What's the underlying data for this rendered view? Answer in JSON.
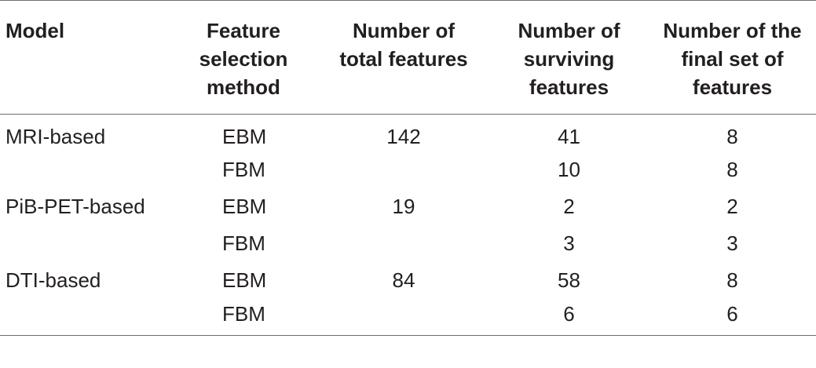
{
  "table": {
    "headers": [
      [
        "Model"
      ],
      [
        "Feature",
        "selection",
        "method"
      ],
      [
        "Number of",
        "total features"
      ],
      [
        "Number of",
        "surviving",
        "features"
      ],
      [
        "Number of the",
        "final set of",
        "features"
      ]
    ],
    "rows": [
      {
        "model": "MRI-based",
        "method": "EBM",
        "total": "142",
        "surviving": "41",
        "final": "8"
      },
      {
        "model": "",
        "method": "FBM",
        "total": "",
        "surviving": "10",
        "final": "8"
      },
      {
        "model": "PiB-PET-based",
        "method": "EBM",
        "total": "19",
        "surviving": "2",
        "final": "2"
      },
      {
        "model": "",
        "method": "FBM",
        "total": "",
        "surviving": "3",
        "final": "3"
      },
      {
        "model": "DTI-based",
        "method": "EBM",
        "total": "84",
        "surviving": "58",
        "final": "8"
      },
      {
        "model": "",
        "method": "FBM",
        "total": "",
        "surviving": "6",
        "final": "6"
      }
    ]
  }
}
